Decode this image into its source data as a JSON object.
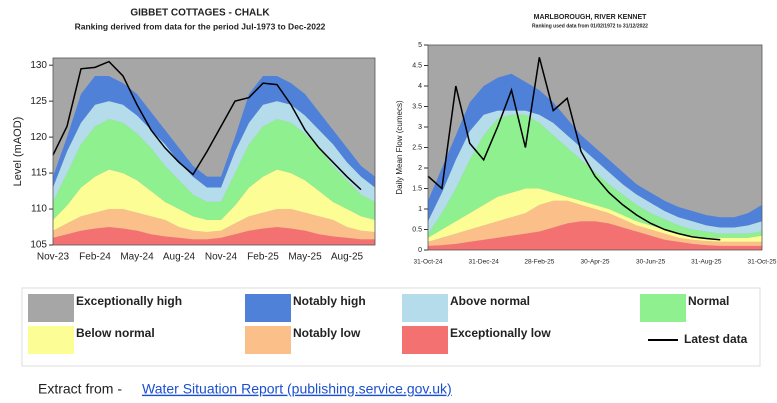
{
  "chart_data": [
    {
      "type": "area",
      "title": "GIBBET COTTAGES - CHALK",
      "subtitle": "Ranking derived from data for the period Jul-1973 to Dec-2022",
      "ylabel": "Level (mAOD)",
      "categories": [
        "Nov-23",
        null,
        null,
        "Feb-24",
        null,
        null,
        "May-24",
        null,
        null,
        "Aug-24",
        null,
        null,
        "Nov-24",
        null,
        null,
        "Feb-25",
        null,
        null,
        "May-25",
        null,
        null,
        "Aug-25",
        null,
        null
      ],
      "ylim": [
        105,
        131
      ],
      "yticks": [
        105,
        110,
        115,
        120,
        125,
        130
      ],
      "background": "#a6a6a6",
      "series": [
        {
          "color": "#f47171",
          "values": [
            1,
            1.5,
            2,
            2.3,
            2.5,
            2.3,
            2,
            1.5,
            1.2,
            1,
            0.8,
            0.8,
            1,
            1.5,
            2,
            2.3,
            2.5,
            2.3,
            2,
            1.5,
            1.2,
            1,
            0.8,
            0.8
          ]
        },
        {
          "color": "#fbbf8a",
          "values": [
            1,
            1.5,
            2,
            2.2,
            2.5,
            2.7,
            2.5,
            2.5,
            2.3,
            1.5,
            1.2,
            1,
            1,
            1.5,
            2,
            2.2,
            2.5,
            2.7,
            2.5,
            2.5,
            2.3,
            1.5,
            1.2,
            1
          ]
        },
        {
          "color": "#fdfd96",
          "values": [
            1.5,
            2.5,
            4,
            5,
            5.5,
            5,
            4.5,
            3.5,
            2.5,
            2.5,
            2,
            1.7,
            1.5,
            2.5,
            4,
            5,
            5.5,
            5,
            4.5,
            3.5,
            2.5,
            2.5,
            2,
            1.7
          ]
        },
        {
          "color": "#8ff08f",
          "values": [
            2.5,
            4.5,
            6,
            7,
            7,
            7,
            6.5,
            6,
            5,
            4,
            3,
            2.5,
            2.5,
            4.5,
            6,
            7,
            7,
            7,
            6.5,
            6,
            5,
            4,
            3,
            2.5
          ]
        },
        {
          "color": "#b4dcea",
          "values": [
            2,
            3,
            3,
            3,
            2.5,
            2.5,
            2.5,
            2.5,
            3,
            2.5,
            2.5,
            2,
            2,
            3,
            3,
            3,
            2.5,
            2.5,
            2.5,
            2.5,
            3,
            2.5,
            2.5,
            2
          ]
        },
        {
          "color": "#4f81d9",
          "values": [
            1.5,
            2,
            4,
            4,
            3.5,
            3,
            3,
            2.5,
            2,
            2,
            1.5,
            1.5,
            1.5,
            2,
            4,
            4,
            3.5,
            3,
            3,
            2.5,
            2,
            2,
            1.5,
            1.5
          ]
        }
      ],
      "line": {
        "color": "#000000",
        "values": [
          117.5,
          121.5,
          129.5,
          129.7,
          130.5,
          128.5,
          124.5,
          121,
          118.5,
          116.5,
          114.8,
          118,
          121.5,
          125,
          125.5,
          127.5,
          127.3,
          124.5,
          121,
          118.5,
          116.5,
          114.5,
          112.7,
          null
        ]
      }
    },
    {
      "type": "area",
      "title": "MARLBOROUGH, RIVER KENNET",
      "subtitle": "Ranking used data from 01/02/1972 to 31/12/2022",
      "ylabel": "Daily Mean Flow (cumecs)",
      "categories": [
        "31-Oct-24",
        null,
        null,
        null,
        "31-Dec-24",
        null,
        null,
        null,
        "28-Feb-25",
        null,
        null,
        null,
        "30-Apr-25",
        null,
        null,
        null,
        "30-Jun-25",
        null,
        null,
        null,
        "31-Aug-25",
        null,
        null,
        null,
        "31-Oct-25"
      ],
      "ylim": [
        0,
        5
      ],
      "yticks": [
        0,
        0.5,
        1,
        1.5,
        2,
        2.5,
        3,
        3.5,
        4,
        4.5,
        5
      ],
      "background": "#a6a6a6",
      "series": [
        {
          "color": "#f47171",
          "values": [
            0.1,
            0.12,
            0.15,
            0.2,
            0.25,
            0.3,
            0.35,
            0.4,
            0.45,
            0.55,
            0.65,
            0.7,
            0.7,
            0.65,
            0.55,
            0.45,
            0.35,
            0.25,
            0.2,
            0.15,
            0.12,
            0.1,
            0.1,
            0.1,
            0.1
          ]
        },
        {
          "color": "#fbbf8a",
          "values": [
            0.1,
            0.18,
            0.25,
            0.3,
            0.35,
            0.4,
            0.45,
            0.5,
            0.65,
            0.65,
            0.55,
            0.4,
            0.3,
            0.25,
            0.2,
            0.15,
            0.15,
            0.15,
            0.1,
            0.1,
            0.1,
            0.1,
            0.1,
            0.1,
            0.1
          ]
        },
        {
          "color": "#fdfd96",
          "values": [
            0.1,
            0.2,
            0.3,
            0.4,
            0.5,
            0.6,
            0.6,
            0.6,
            0.4,
            0.2,
            0.1,
            0.1,
            0.1,
            0.1,
            0.1,
            0.1,
            0.1,
            0.1,
            0.1,
            0.1,
            0.08,
            0.1,
            0.1,
            0.1,
            0.15
          ]
        },
        {
          "color": "#8ff08f",
          "values": [
            0.1,
            0.4,
            0.8,
            1.3,
            1.7,
            1.9,
            1.9,
            1.8,
            1.6,
            1.4,
            1.2,
            1,
            0.8,
            0.6,
            0.5,
            0.4,
            0.3,
            0.25,
            0.2,
            0.15,
            0.15,
            0.1,
            0.1,
            0.1,
            0.1
          ]
        },
        {
          "color": "#b4dcea",
          "values": [
            0.3,
            0.5,
            0.7,
            0.7,
            0.5,
            0.2,
            0.1,
            0.1,
            0.2,
            0.3,
            0.3,
            0.3,
            0.3,
            0.3,
            0.25,
            0.25,
            0.25,
            0.2,
            0.2,
            0.2,
            0.15,
            0.15,
            0.15,
            0.2,
            0.25
          ]
        },
        {
          "color": "#4f81d9",
          "values": [
            0.5,
            0.6,
            0.6,
            0.7,
            0.7,
            0.8,
            0.9,
            0.7,
            0.6,
            0.5,
            0.4,
            0.3,
            0.3,
            0.3,
            0.3,
            0.25,
            0.25,
            0.25,
            0.25,
            0.25,
            0.25,
            0.25,
            0.25,
            0.3,
            0.4
          ]
        }
      ],
      "line": {
        "color": "#000000",
        "values": [
          1.8,
          1.5,
          4,
          2.6,
          2.2,
          3,
          3.9,
          2.5,
          4.7,
          3.4,
          3.7,
          2.4,
          1.8,
          1.4,
          1.1,
          0.85,
          0.65,
          0.5,
          0.4,
          0.32,
          0.28,
          0.25,
          null,
          null,
          null
        ]
      }
    }
  ],
  "legend": [
    {
      "name": "Exceptionally high",
      "color": "#a6a6a6"
    },
    {
      "name": "Notably high",
      "color": "#4f81d9"
    },
    {
      "name": "Above normal",
      "color": "#b4dcea"
    },
    {
      "name": "Normal",
      "color": "#8ff08f"
    },
    {
      "name": "Below normal",
      "color": "#fdfd96"
    },
    {
      "name": "Notably low",
      "color": "#fbbf8a"
    },
    {
      "name": "Exceptionally low",
      "color": "#f47171"
    },
    {
      "name": "Latest data",
      "color": "#000000",
      "style": "line"
    }
  ],
  "footer": {
    "prefix": "Extract from -",
    "link_text": "Water Situation Report (publishing.service.gov.uk)"
  }
}
